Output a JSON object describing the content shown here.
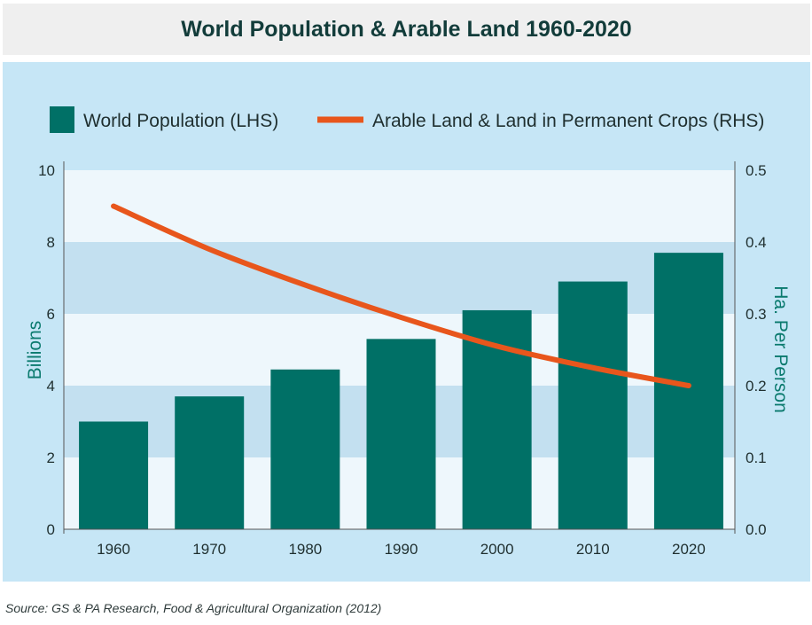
{
  "title": "World Population & Arable Land 1960-2020",
  "source": "Source: GS & PA Research, Food & Agricultural Organization (2012)",
  "colors": {
    "bar": "#007066",
    "line": "#e8561c",
    "panel": "#c6e6f6",
    "band_light": "#eef7fc",
    "band_dark": "#c3e0f0",
    "axis_title": "#0a7a6e"
  },
  "chart_data": {
    "type": "bar",
    "categories": [
      "1960",
      "1970",
      "1980",
      "1990",
      "2000",
      "2010",
      "2020"
    ],
    "series": [
      {
        "name": "World Population (LHS)",
        "type": "bar",
        "axis": "left",
        "values": [
          3.0,
          3.7,
          4.45,
          5.3,
          6.1,
          6.9,
          7.7
        ]
      },
      {
        "name": "Arable Land & Land in Permanent Crops (RHS)",
        "type": "line",
        "axis": "right",
        "values": [
          0.45,
          0.39,
          0.34,
          0.295,
          0.255,
          0.225,
          0.2
        ]
      }
    ],
    "ylabel": "Billions",
    "y2label": "Ha. Per Person",
    "ylim": [
      0,
      10
    ],
    "y2lim": [
      0,
      0.5
    ],
    "yticks": [
      "0",
      "2",
      "4",
      "6",
      "8",
      "10"
    ],
    "y2ticks": [
      "0.0",
      "0.1",
      "0.2",
      "0.3",
      "0.4",
      "0.5"
    ],
    "legend_position": "top",
    "grid": "alternating horizontal bands"
  }
}
